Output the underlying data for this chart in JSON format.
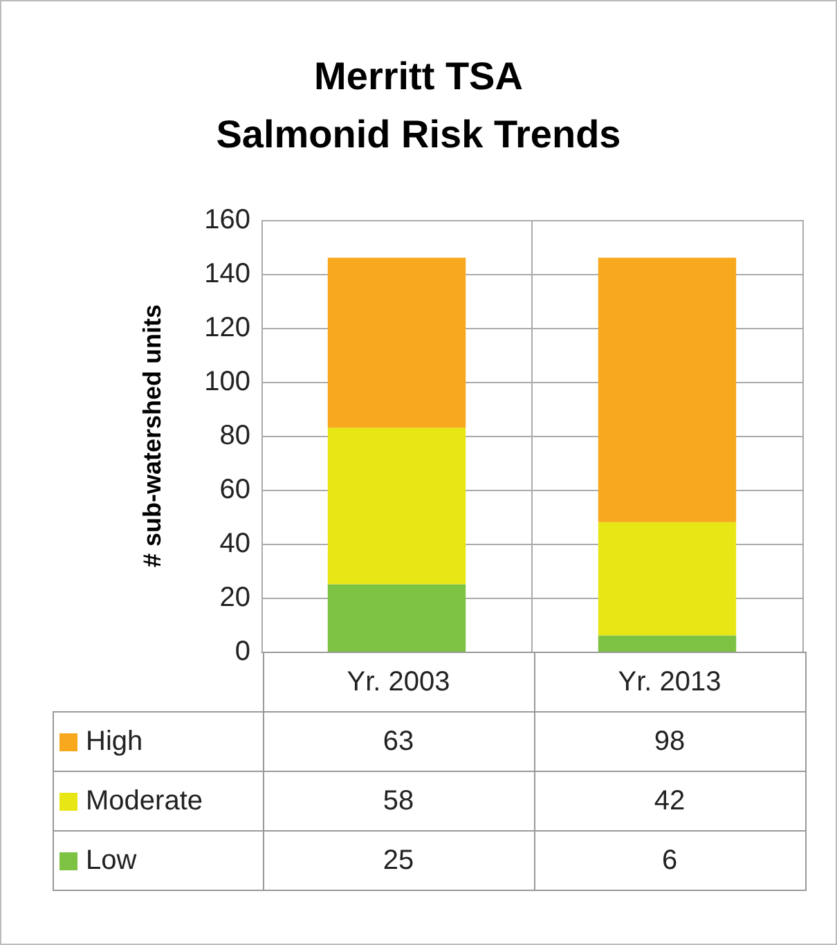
{
  "chart_data": {
    "type": "bar",
    "title": "Merritt TSA\nSalmonid Risk Trends",
    "ylabel": "# sub-watershed units",
    "categories": [
      "Yr. 2003",
      "Yr. 2013"
    ],
    "stacked": true,
    "series": [
      {
        "name": "Low",
        "color": "#7dc242",
        "values": [
          25,
          6
        ]
      },
      {
        "name": "Moderate",
        "color": "#e8e614",
        "values": [
          58,
          42
        ]
      },
      {
        "name": "High",
        "color": "#f8a81c",
        "values": [
          63,
          98
        ]
      }
    ],
    "ylim": [
      0,
      160
    ],
    "yticks": [
      0,
      20,
      40,
      60,
      80,
      100,
      120,
      140,
      160
    ],
    "grid": "y",
    "legend": "bottom left",
    "data_labels": true
  }
}
